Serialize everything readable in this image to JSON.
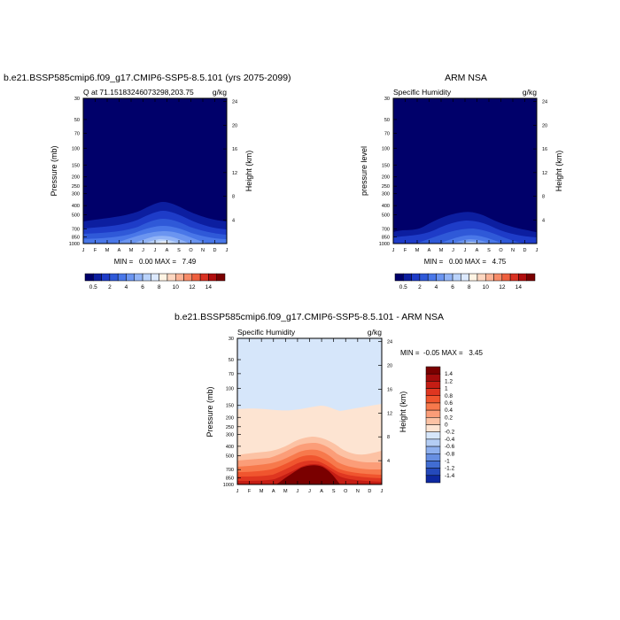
{
  "chart_data": [
    {
      "type": "heatmap",
      "title": "b.e21.BSSP585cmip6.f09_g17.CMIP6-SSP5-8.5.101 (yrs 2075-2099)",
      "left_label": "Q at 71.15183246073298,203.75",
      "right_label": "g/kg",
      "ylabel": "Pressure (mb)",
      "y2label": "Height (km)",
      "x_ticks": [
        "J",
        "F",
        "M",
        "A",
        "M",
        "J",
        "J",
        "A",
        "S",
        "O",
        "N",
        "D",
        "J"
      ],
      "y_ticks": [
        30,
        50,
        70,
        100,
        150,
        200,
        250,
        300,
        400,
        500,
        700,
        850,
        1000
      ],
      "y2_ticks": [
        4,
        8,
        12,
        16,
        20,
        24
      ],
      "min_max_text": "MIN =   0.00 MAX =   7.49",
      "min": 0.0,
      "max": 7.49,
      "colorbar": {
        "labels": [
          "0.5",
          "2",
          "4",
          "6",
          "8",
          "10",
          "12",
          "14"
        ],
        "colors": [
          "#00006a",
          "#0c1ea0",
          "#1e3cc8",
          "#2f59d8",
          "#4977e8",
          "#6b95f0",
          "#92b4f6",
          "#bad3fb",
          "#dce9fd",
          "#fff4e4",
          "#fdd7c1",
          "#fbb396",
          "#f78b68",
          "#ee5f3e",
          "#d93122",
          "#b10e0e",
          "#7a0000"
        ]
      },
      "monthly_surface_q": [
        1.0,
        0.9,
        1.2,
        2.0,
        3.5,
        5.5,
        7.4,
        6.5,
        4.5,
        2.6,
        1.5,
        1.1,
        1.0
      ]
    },
    {
      "type": "heatmap",
      "title": "ARM NSA",
      "left_label": "Specific Humidity",
      "right_label": "g/kg",
      "ylabel": "pressure level",
      "y2label": "Height (km)",
      "x_ticks": [
        "J",
        "F",
        "M",
        "A",
        "M",
        "J",
        "J",
        "A",
        "S",
        "O",
        "N",
        "D",
        "J"
      ],
      "y_ticks": [
        30,
        50,
        70,
        100,
        150,
        200,
        250,
        300,
        400,
        500,
        700,
        850,
        1000
      ],
      "y2_ticks": [
        4,
        8,
        12,
        16,
        20,
        24
      ],
      "min_max_text": "MIN =   0.00 MAX =   4.75",
      "min": 0.0,
      "max": 4.75,
      "colorbar": {
        "labels": [
          "0.5",
          "2",
          "4",
          "6",
          "8",
          "10",
          "12",
          "14"
        ]
      },
      "monthly_surface_q": [
        0.6,
        0.5,
        0.6,
        1.0,
        2.0,
        3.6,
        4.7,
        4.2,
        2.8,
        1.4,
        0.8,
        0.6,
        0.6
      ]
    },
    {
      "type": "heatmap",
      "title": "b.e21.BSSP585cmip6.f09_g17.CMIP6-SSP5-8.5.101 - ARM NSA",
      "left_label": "Specific Humidity",
      "right_label": "g/kg",
      "ylabel": "Pressure (mb)",
      "y2label": "Height (km)",
      "x_ticks": [
        "J",
        "F",
        "M",
        "A",
        "M",
        "J",
        "J",
        "A",
        "S",
        "O",
        "N",
        "D",
        "J"
      ],
      "y_ticks": [
        30,
        50,
        70,
        100,
        150,
        200,
        250,
        300,
        400,
        500,
        700,
        850,
        1000
      ],
      "y2_ticks": [
        4,
        8,
        12,
        16,
        20,
        24
      ],
      "min_max_text": "MIN =  -0.05 MAX =   3.45",
      "min": -0.05,
      "max": 3.45,
      "colorbar": {
        "labels": [
          "1.4",
          "1.2",
          "1",
          "0.8",
          "0.6",
          "0.4",
          "0.2",
          "0",
          "-0.2",
          "-0.4",
          "-0.6",
          "-0.8",
          "-1",
          "-1.2",
          "-1.4"
        ],
        "colors": [
          "#7a0000",
          "#a30c0c",
          "#c41d14",
          "#df3620",
          "#f0552e",
          "#f7794c",
          "#fb9d78",
          "#fcc2a4",
          "#fde4d2",
          "#d6e6fa",
          "#b4cdf4",
          "#8eb0ee",
          "#678fe2",
          "#416dd2",
          "#2449bb",
          "#0d28a0"
        ]
      }
    }
  ]
}
